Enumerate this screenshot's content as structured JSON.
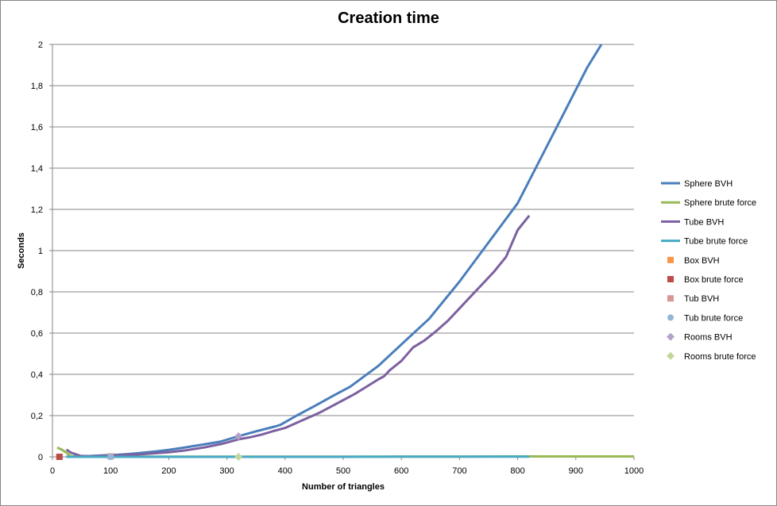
{
  "chart_data": {
    "type": "line",
    "title": "Creation time",
    "xlabel": "Number of triangles",
    "ylabel": "Seconds",
    "xlim": [
      0,
      1000
    ],
    "ylim": [
      0,
      2
    ],
    "x_ticks": [
      "0",
      "100",
      "200",
      "300",
      "400",
      "500",
      "600",
      "700",
      "800",
      "900",
      "1000"
    ],
    "y_ticks": [
      "0",
      "0,2",
      "0,4",
      "0,6",
      "0,8",
      "1",
      "1,2",
      "1,4",
      "1,6",
      "1,8",
      "2"
    ],
    "grid": "horizontal",
    "legend_position": "right",
    "series": [
      {
        "name": "Sphere BVH",
        "kind": "line",
        "color": "#4A7EBB",
        "x": [
          24,
          32,
          48,
          64,
          80,
          96,
          112,
          128,
          144,
          160,
          180,
          200,
          224,
          256,
          288,
          320,
          352,
          384,
          392,
          420,
          450,
          480,
          512,
          560,
          600,
          648,
          700,
          750,
          800,
          840,
          880,
          920,
          944
        ],
        "y": [
          0.001,
          0.002,
          0.003,
          0.004,
          0.006,
          0.008,
          0.01,
          0.013,
          0.017,
          0.021,
          0.027,
          0.034,
          0.044,
          0.058,
          0.073,
          0.1,
          0.125,
          0.148,
          0.155,
          0.2,
          0.245,
          0.292,
          0.34,
          0.44,
          0.545,
          0.67,
          0.85,
          1.04,
          1.23,
          1.45,
          1.67,
          1.89,
          2.0
        ]
      },
      {
        "name": "Sphere brute force",
        "kind": "line",
        "color": "#98B954",
        "x": [
          8,
          16,
          24,
          32,
          48,
          64,
          100,
          200,
          300,
          400,
          500,
          600,
          700,
          800,
          900,
          1000
        ],
        "y": [
          0.045,
          0.035,
          0.02,
          0.003,
          0.001,
          0.001,
          0.001,
          0.001,
          0.001,
          0.001,
          0.001,
          0.001,
          0.001,
          0.002,
          0.002,
          0.002
        ]
      },
      {
        "name": "Tube BVH",
        "kind": "line",
        "color": "#7D60A0",
        "x": [
          24,
          32,
          48,
          64,
          100,
          150,
          200,
          230,
          260,
          290,
          320,
          340,
          360,
          380,
          400,
          420,
          440,
          460,
          480,
          500,
          520,
          540,
          560,
          570,
          580,
          600,
          620,
          640,
          660,
          680,
          700,
          720,
          740,
          760,
          780,
          800,
          820
        ],
        "y": [
          0.035,
          0.02,
          0.005,
          0.003,
          0.006,
          0.012,
          0.022,
          0.032,
          0.045,
          0.062,
          0.085,
          0.095,
          0.108,
          0.125,
          0.14,
          0.165,
          0.19,
          0.215,
          0.245,
          0.275,
          0.305,
          0.34,
          0.375,
          0.39,
          0.42,
          0.465,
          0.53,
          0.565,
          0.61,
          0.66,
          0.72,
          0.78,
          0.84,
          0.9,
          0.97,
          1.1,
          1.17
        ]
      },
      {
        "name": "Tube brute force",
        "kind": "line",
        "color": "#46AAC5",
        "x": [
          24,
          100,
          200,
          300,
          400,
          500,
          600,
          700,
          820
        ],
        "y": [
          0.0,
          0.0,
          0.0,
          0.0,
          0.0,
          0.0,
          0.001,
          0.001,
          0.001
        ]
      },
      {
        "name": "Box BVH",
        "kind": "marker",
        "marker": "square",
        "color": "#F79646",
        "x": [
          12
        ],
        "y": [
          0.0
        ]
      },
      {
        "name": "Box brute force",
        "kind": "marker",
        "marker": "square",
        "color": "#BE4B48",
        "x": [
          12
        ],
        "y": [
          0.0
        ]
      },
      {
        "name": "Tub BVH",
        "kind": "marker",
        "marker": "square",
        "color": "#D99694",
        "x": [
          100
        ],
        "y": [
          0.002
        ]
      },
      {
        "name": "Tub brute force",
        "kind": "marker",
        "marker": "circle",
        "color": "#95B3D7",
        "x": [
          100
        ],
        "y": [
          0.0
        ]
      },
      {
        "name": "Rooms BVH",
        "kind": "marker",
        "marker": "diamond",
        "color": "#B3A2C7",
        "x": [
          320
        ],
        "y": [
          0.1
        ]
      },
      {
        "name": "Rooms brute force",
        "kind": "marker",
        "marker": "diamond",
        "color": "#C3D69B",
        "x": [
          320
        ],
        "y": [
          0.0
        ]
      }
    ]
  }
}
